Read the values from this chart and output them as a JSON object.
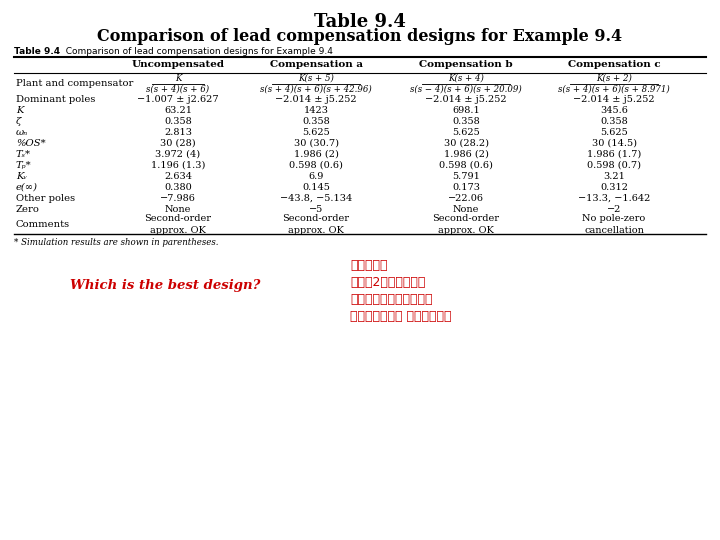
{
  "title_line1": "Table 9.4",
  "title_line2": "Comparison of lead compensation designs for Example 9.4",
  "bg_color": "#FFFFFF",
  "text_color": "#000000",
  "red_color": "#CC0000",
  "which_text": "Which is the best design?",
  "chinese_lines": [
    "系統階數？",
    "是否有2個主要極點？",
    "是否有零點？能否抗消？",
    "比較規格達成度 確認最佳設計"
  ],
  "footnote": "* Simulation results are shown in parentheses.",
  "table_label_bold": "Table 9.4",
  "table_caption_text": "  Comparison of lead compensation designs for Example 9.4",
  "col_headers": [
    "Uncompensated",
    "Compensation a",
    "Compensation b",
    "Compensation c"
  ],
  "rows": [
    {
      "label": "Plant and compensator",
      "vals": [
        "K / s(s+4)(s+6)",
        "K(s+5) / s(s+4)(s+6)(s+42.96)",
        "K(s+4) / s(s-4)(s+6)(s+20.09)",
        "K(s+2) / s(s+4)(s+6)(s+8.971)"
      ],
      "label_italic": false,
      "frac": true
    },
    {
      "label": "Dominant poles",
      "vals": [
        "−1.007 ± j2.627",
        "−2.014 ± j5.252",
        "−2.014 ± j5.252",
        "−2.014 ± j5.252"
      ],
      "label_italic": false,
      "frac": false
    },
    {
      "label": "K",
      "vals": [
        "63.21",
        "1423",
        "698.1",
        "345.6"
      ],
      "label_italic": true,
      "frac": false
    },
    {
      "label": "ζ",
      "vals": [
        "0.358",
        "0.358",
        "0.358",
        "0.358"
      ],
      "label_italic": true,
      "frac": false
    },
    {
      "label": "ωₙ",
      "vals": [
        "2.813",
        "5.625",
        "5.625",
        "5.625"
      ],
      "label_italic": true,
      "frac": false
    },
    {
      "label": "%OS*",
      "vals": [
        "30 (28)",
        "30 (30.7)",
        "30 (28.2)",
        "30 (14.5)"
      ],
      "label_italic": true,
      "frac": false
    },
    {
      "label": "Tₛ*",
      "vals": [
        "3.972 (4)",
        "1.986 (2)",
        "1.986 (2)",
        "1.986 (1.7)"
      ],
      "label_italic": true,
      "frac": false
    },
    {
      "label": "Tₚ*",
      "vals": [
        "1.196 (1.3)",
        "0.598 (0.6)",
        "0.598 (0.6)",
        "0.598 (0.7)"
      ],
      "label_italic": true,
      "frac": false
    },
    {
      "label": "Kᵥ",
      "vals": [
        "2.634",
        "6.9",
        "5.791",
        "3.21"
      ],
      "label_italic": true,
      "frac": false
    },
    {
      "label": "e(∞)",
      "vals": [
        "0.380",
        "0.145",
        "0.173",
        "0.312"
      ],
      "label_italic": true,
      "frac": false
    },
    {
      "label": "Other poles",
      "vals": [
        "−7.986",
        "−43.8, −5.134",
        "−22.06",
        "−13.3, −1.642"
      ],
      "label_italic": false,
      "frac": false
    },
    {
      "label": "Zero",
      "vals": [
        "None",
        "−5",
        "None",
        "−2"
      ],
      "label_italic": false,
      "frac": false
    },
    {
      "label": "Comments",
      "vals": [
        "Second-order\napprox. OK",
        "Second-order\napprox. OK",
        "Second-order\napprox. OK",
        "No pole-zero\ncancellation"
      ],
      "label_italic": false,
      "frac": false
    }
  ],
  "frac_data": {
    "nums": [
      "K",
      "K(s + 5)",
      "K(s + 4)",
      "K(s + 2)"
    ],
    "dens": [
      "s(s + 4)(s + 6)",
      "s(s + 4)(s + 6)(s + 42.96)",
      "s(s − 4)(s + 6)(s + 20.09)",
      "s(s + 4)(s + 6)(s + 8.971)"
    ]
  }
}
